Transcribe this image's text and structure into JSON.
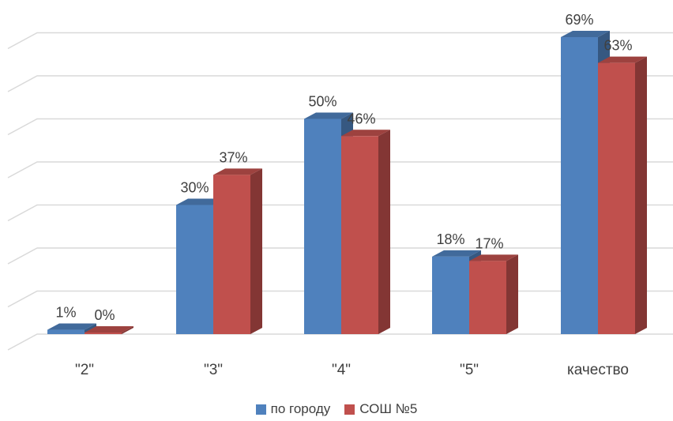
{
  "chart_data": {
    "type": "bar",
    "categories": [
      "\"2\"",
      "\"3\"",
      "\"4\"",
      "\"5\"",
      "качество"
    ],
    "series": [
      {
        "name": "по городу",
        "values": [
          1,
          30,
          50,
          18,
          69
        ],
        "labels": [
          "1%",
          "30%",
          "50%",
          "18%",
          "69%"
        ],
        "color": "#4F81BD"
      },
      {
        "name": "СОШ №5",
        "values": [
          0,
          37,
          46,
          17,
          63
        ],
        "labels": [
          "0%",
          "37%",
          "46%",
          "17%",
          "63%"
        ],
        "color": "#C0504D"
      }
    ],
    "ylim": [
      0,
      70
    ],
    "grid": true,
    "legend_position": "bottom",
    "style": "3d-clustered-column"
  }
}
